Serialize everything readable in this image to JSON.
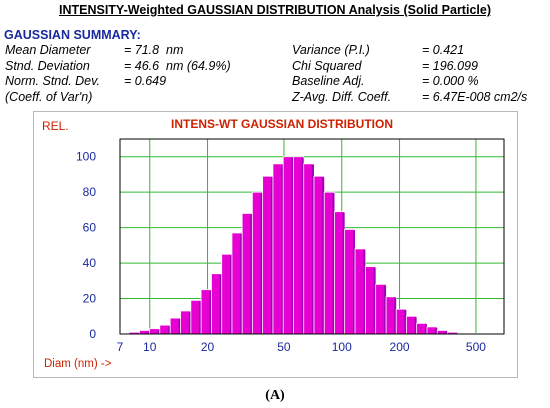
{
  "page_title": "INTENSITY-Weighted GAUSSIAN DISTRIBUTION Analysis (Solid Particle)",
  "summary": {
    "heading": "GAUSSIAN SUMMARY:",
    "left": [
      {
        "label": "Mean Diameter",
        "value": "= 71.8  nm"
      },
      {
        "label": "Stnd. Deviation",
        "value": "= 46.6  nm (64.9%)"
      },
      {
        "label": "Norm. Stnd. Dev.",
        "value": "= 0.649"
      },
      {
        "label": "(Coeff. of Var'n)",
        "value": ""
      }
    ],
    "right": [
      {
        "label": "Variance (P.I.)",
        "value": "= 0.421"
      },
      {
        "label": "Chi Squared",
        "value": "= 196.099"
      },
      {
        "label": "Baseline Adj.",
        "value": "= 0.000 %"
      },
      {
        "label": "Z-Avg. Diff. Coeff.",
        "value": "= 6.47E-008 cm2/s"
      }
    ]
  },
  "chart_data": {
    "type": "bar",
    "title": "INTENS-WT GAUSSIAN DISTRIBUTION",
    "ylabel": "REL.",
    "xlabel": "Diam (nm) ->",
    "x_scale": "log",
    "x_range": [
      7,
      700
    ],
    "ylim": [
      0,
      110
    ],
    "yticks": [
      0,
      20,
      40,
      60,
      80,
      100
    ],
    "xtick_labels": [
      "7",
      "10",
      "20",
      "50",
      "100",
      "200",
      "500"
    ],
    "xtick_values": [
      7,
      10,
      20,
      50,
      100,
      200,
      500
    ],
    "grid": true,
    "bar_color": "#e600d2",
    "bar_shadow_color": "#a000b8",
    "title_color": "#cc2200",
    "tick_label_color": "#1a2a9e",
    "grid_color": "#33b833",
    "diameters_nm": [
      8.3,
      9.4,
      10.6,
      12.0,
      13.6,
      15.4,
      17.4,
      19.7,
      22.3,
      25.2,
      28.5,
      32.2,
      36.4,
      41.2,
      46.6,
      52.7,
      59.6,
      67.4,
      76.2,
      86.2,
      97.5,
      110,
      125,
      141,
      160,
      181,
      204,
      231,
      261,
      296,
      334,
      378,
      428,
      484
    ],
    "values": [
      1,
      2,
      3,
      5,
      9,
      13,
      19,
      25,
      34,
      45,
      57,
      68,
      80,
      89,
      96,
      100,
      100,
      96,
      89,
      80,
      69,
      59,
      48,
      38,
      28,
      21,
      14,
      10,
      6,
      4,
      2,
      1,
      0.5,
      0.3
    ]
  },
  "caption": "(A)"
}
